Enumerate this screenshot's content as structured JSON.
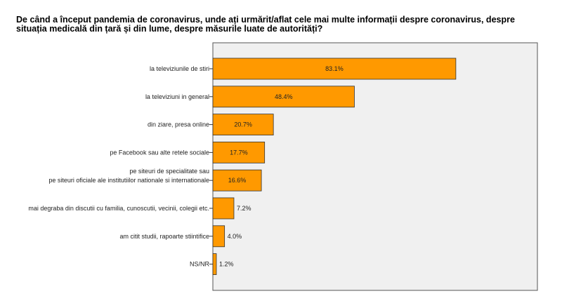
{
  "chart_data": {
    "type": "bar",
    "orientation": "horizontal",
    "title": "De când a început pandemia de coronavirus, unde ați urmărit/aflat cele mai multe informații despre coronavirus, despre situația medicală din țară și din lume, despre măsurile luate de autorități?",
    "categories": [
      [
        "la televiziunile de stiri"
      ],
      [
        "la televiziuni in general"
      ],
      [
        "din ziare, presa online"
      ],
      [
        "pe Facebook sau alte retele sociale"
      ],
      [
        "pe siteuri de specialitate sau",
        "pe siteuri oficiale ale institutiilor nationale si internationale"
      ],
      [
        "mai degraba din discutii cu familia, cunoscutii, vecinii, colegii etc."
      ],
      [
        "am citit studii, rapoarte stiintifice"
      ],
      [
        "NS/NR"
      ]
    ],
    "values": [
      83.1,
      48.4,
      20.7,
      17.7,
      16.6,
      7.2,
      4.0,
      1.2
    ],
    "value_labels": [
      "83.1%",
      "48.4%",
      "20.7%",
      "17.7%",
      "16.6%",
      "7.2%",
      "4.0%",
      "1.2%"
    ],
    "xlim": [
      0,
      111
    ],
    "grid": false,
    "bar_color": "#FF9900",
    "plot_bg": "#F0F0F0"
  }
}
